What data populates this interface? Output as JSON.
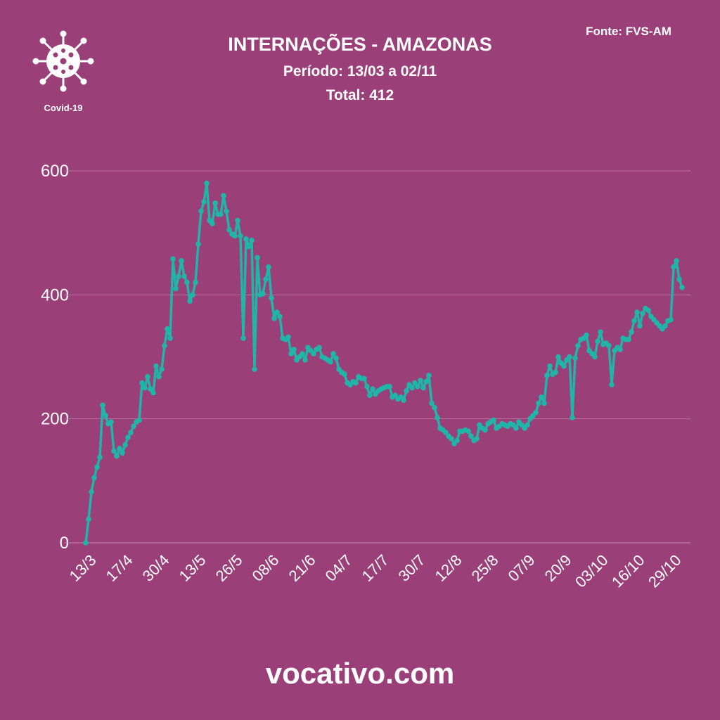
{
  "chart_data": {
    "type": "line",
    "title": "INTERNAÇÕES - AMAZONAS",
    "subtitle": "Período: 13/03 a 02/11",
    "total": "Total: 412",
    "source": "Fonte: FVS-AM",
    "badge": "Covid-19",
    "footer": "vocativo.com",
    "categories": [
      "13/3",
      null,
      null,
      null,
      null,
      null,
      null,
      null,
      null,
      null,
      null,
      null,
      null,
      "17/4",
      null,
      null,
      null,
      null,
      null,
      null,
      null,
      null,
      null,
      null,
      null,
      null,
      "30/4",
      null,
      null,
      null,
      null,
      null,
      null,
      null,
      null,
      null,
      null,
      null,
      null,
      "13/5",
      null,
      null,
      null,
      null,
      null,
      null,
      null,
      null,
      null,
      null,
      null,
      null,
      "26/5",
      null,
      null,
      null,
      null,
      null,
      null,
      null,
      null,
      null,
      null,
      null,
      null,
      "08/6",
      null,
      null,
      null,
      null,
      null,
      null,
      null,
      null,
      null,
      null,
      null,
      null,
      "21/6",
      null,
      null,
      null,
      null,
      null,
      null,
      null,
      null,
      null,
      null,
      null,
      null,
      "04/7",
      null,
      null,
      null,
      null,
      null,
      null,
      null,
      null,
      null,
      null,
      null,
      null,
      "17/7",
      null,
      null,
      null,
      null,
      null,
      null,
      null,
      null,
      null,
      null,
      null,
      null,
      "30/7",
      null,
      null,
      null,
      null,
      null,
      null,
      null,
      null,
      null,
      null,
      null,
      null,
      "12/8",
      null,
      null,
      null,
      null,
      null,
      null,
      null,
      null,
      null,
      null,
      null,
      null,
      "25/8",
      null,
      null,
      null,
      null,
      null,
      null,
      null,
      null,
      null,
      null,
      null,
      null,
      "07/9",
      null,
      null,
      null,
      null,
      null,
      null,
      null,
      null,
      null,
      null,
      null,
      null,
      "20/9",
      null,
      null,
      null,
      null,
      null,
      null,
      null,
      null,
      null,
      null,
      null,
      null,
      "03/10",
      null,
      null,
      null,
      null,
      null,
      null,
      null,
      null,
      null,
      null,
      null,
      null,
      "16/10",
      null,
      null,
      null,
      null,
      null,
      null,
      null,
      null,
      null,
      null,
      null,
      null,
      "29/10",
      null,
      null,
      null,
      null
    ],
    "values": [
      0,
      38,
      82,
      105,
      122,
      138,
      222,
      205,
      192,
      195,
      148,
      140,
      152,
      145,
      158,
      170,
      178,
      188,
      195,
      198,
      258,
      250,
      268,
      248,
      242,
      285,
      268,
      280,
      318,
      345,
      330,
      458,
      410,
      430,
      455,
      430,
      420,
      390,
      400,
      420,
      482,
      535,
      550,
      580,
      520,
      515,
      548,
      530,
      530,
      560,
      535,
      505,
      498,
      495,
      520,
      495,
      330,
      490,
      478,
      488,
      280,
      460,
      400,
      402,
      425,
      445,
      395,
      362,
      372,
      365,
      330,
      328,
      332,
      305,
      312,
      295,
      300,
      305,
      295,
      315,
      310,
      305,
      312,
      315,
      300,
      298,
      295,
      292,
      305,
      298,
      280,
      275,
      272,
      258,
      255,
      260,
      258,
      268,
      265,
      265,
      252,
      238,
      248,
      240,
      245,
      248,
      250,
      252,
      252,
      235,
      238,
      232,
      235,
      230,
      245,
      255,
      250,
      258,
      252,
      262,
      250,
      260,
      270,
      225,
      218,
      202,
      185,
      182,
      178,
      172,
      168,
      160,
      165,
      180,
      180,
      182,
      180,
      172,
      165,
      168,
      190,
      185,
      182,
      192,
      195,
      198,
      185,
      188,
      192,
      190,
      188,
      192,
      190,
      185,
      195,
      190,
      185,
      190,
      200,
      205,
      210,
      225,
      235,
      225,
      270,
      285,
      272,
      275,
      300,
      290,
      285,
      295,
      300,
      202,
      298,
      318,
      328,
      330,
      335,
      310,
      305,
      300,
      325,
      340,
      320,
      322,
      318,
      255,
      310,
      315,
      312,
      330,
      328,
      328,
      340,
      358,
      372,
      350,
      370,
      378,
      375,
      365,
      360,
      355,
      350,
      345,
      350,
      358,
      360,
      445,
      455,
      425,
      412
    ],
    "color": "#1fb5a8",
    "ylim": [
      0,
      600
    ],
    "yticks": [
      0,
      200,
      400,
      600
    ],
    "grid": true
  }
}
